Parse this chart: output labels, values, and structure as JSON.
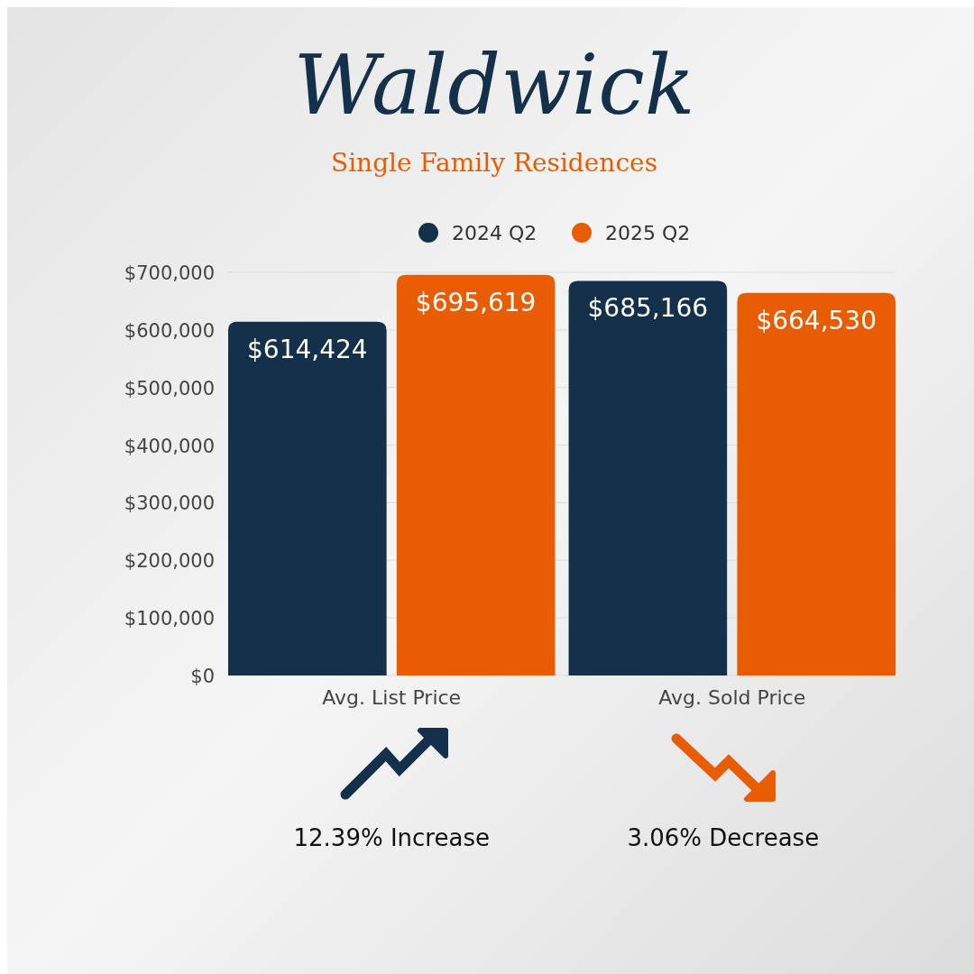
{
  "chart_data": {
    "type": "bar",
    "title": "Waldwick",
    "subtitle": "Single Family Residences",
    "categories": [
      "Avg. List Price",
      "Avg. Sold Price"
    ],
    "series": [
      {
        "name": "2024 Q2",
        "color": "#14304a",
        "values": [
          614424,
          685166
        ],
        "value_labels": [
          "$614,424",
          "$685,166"
        ]
      },
      {
        "name": "2025 Q2",
        "color": "#e85d04",
        "values": [
          695619,
          664530
        ],
        "value_labels": [
          "$695,619",
          "$664,530"
        ]
      }
    ],
    "ylim": [
      0,
      700000
    ],
    "yticks": [
      {
        "value": 0,
        "label": "$0"
      },
      {
        "value": 100000,
        "label": "$100,000"
      },
      {
        "value": 200000,
        "label": "$200,000"
      },
      {
        "value": 300000,
        "label": "$300,000"
      },
      {
        "value": 400000,
        "label": "$400,000"
      },
      {
        "value": 500000,
        "label": "$500,000"
      },
      {
        "value": 600000,
        "label": "$600,000"
      },
      {
        "value": 700000,
        "label": "$700,000"
      }
    ],
    "grid": "y",
    "legend": "top",
    "annotations": [
      "12.39% Increase",
      "3.06% Decrease"
    ]
  }
}
